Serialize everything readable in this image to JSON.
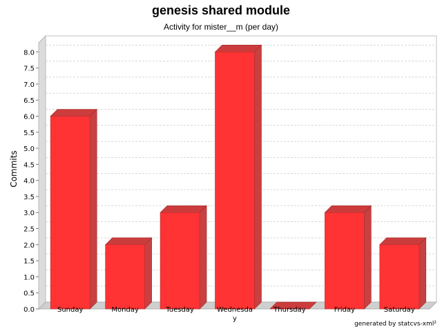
{
  "chart_data": {
    "type": "bar",
    "title": "genesis shared module",
    "subtitle": "Activity for mister__m (per day)",
    "xlabel": "",
    "ylabel": "Commits",
    "categories": [
      "Sunday",
      "Monday",
      "Tuesday",
      "Wednesday",
      "Thursday",
      "Friday",
      "Saturday"
    ],
    "values": [
      6.0,
      2.0,
      3.0,
      8.0,
      0.0,
      3.0,
      2.0
    ],
    "ylim": [
      0,
      8.2
    ],
    "yticks": [
      "0.0",
      "0.5",
      "1.0",
      "1.5",
      "2.0",
      "2.5",
      "3.0",
      "3.5",
      "4.0",
      "4.5",
      "5.0",
      "5.5",
      "6.0",
      "6.5",
      "7.0",
      "7.5",
      "8.0"
    ],
    "grid": true,
    "legend": "none",
    "bar_color": "#ff3333",
    "bar_top_color": "#cc3c3c",
    "bar_side_color": "#c84040",
    "footer": "generated by statcvs-xml²"
  }
}
